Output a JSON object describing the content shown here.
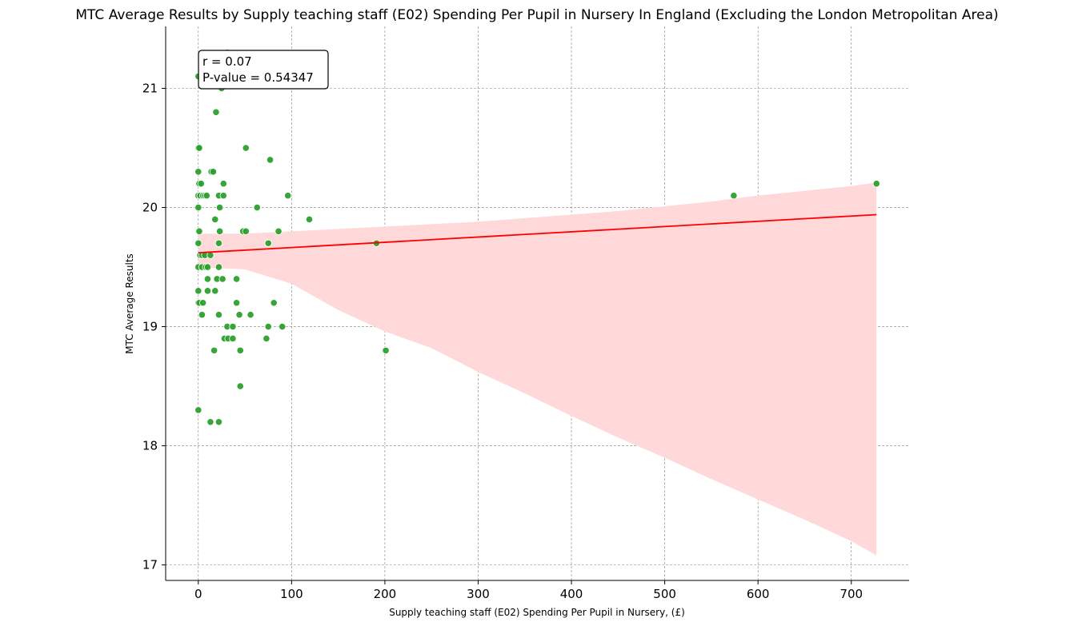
{
  "chart_data": {
    "type": "scatter",
    "title": "MTC Average Results by Supply teaching staff (E02) Spending Per Pupil in Nursery In England (Excluding the London Metropolitan Area)",
    "xlabel": "Supply teaching staff (E02) Spending Per Pupil in Nursery, (£)",
    "ylabel": "MTC Average Results",
    "xlim": [
      -35,
      762
    ],
    "ylim": [
      16.87,
      21.52
    ],
    "xticks": [
      0,
      100,
      200,
      300,
      400,
      500,
      600,
      700
    ],
    "yticks": [
      17,
      18,
      19,
      20,
      21
    ],
    "grid": true,
    "annotation": {
      "r_text": "r = 0.07",
      "p_text": "P-value = 0.54347",
      "placement": "top-left"
    },
    "colors": {
      "points": "#2ca02c",
      "points_edge": "#ffffff",
      "regression": "#ff0000",
      "ci_band": "#ffd8d9",
      "grid": "#808080"
    },
    "regression": {
      "x": [
        0,
        727
      ],
      "y": [
        19.62,
        19.94
      ]
    },
    "confidence_band": {
      "x": [
        0,
        50,
        100,
        150,
        200,
        250,
        300,
        350,
        400,
        450,
        500,
        550,
        600,
        650,
        700,
        727
      ],
      "upper": [
        19.78,
        19.78,
        19.8,
        19.82,
        19.84,
        19.86,
        19.88,
        19.91,
        19.94,
        19.97,
        20.01,
        20.05,
        20.1,
        20.14,
        20.18,
        20.21
      ],
      "lower": [
        19.5,
        19.48,
        19.36,
        19.14,
        18.96,
        18.82,
        18.62,
        18.44,
        18.25,
        18.07,
        17.9,
        17.72,
        17.55,
        17.38,
        17.2,
        17.08
      ]
    },
    "points": [
      {
        "x": 0,
        "y": 21.1
      },
      {
        "x": 0,
        "y": 20.5
      },
      {
        "x": 1,
        "y": 20.5
      },
      {
        "x": 0,
        "y": 20.3
      },
      {
        "x": 1,
        "y": 20.2
      },
      {
        "x": 3,
        "y": 20.2
      },
      {
        "x": 0,
        "y": 20.1
      },
      {
        "x": 2,
        "y": 20.1
      },
      {
        "x": 5,
        "y": 20.1
      },
      {
        "x": 7,
        "y": 20.1
      },
      {
        "x": 9,
        "y": 20.1
      },
      {
        "x": 0,
        "y": 20.0
      },
      {
        "x": 1,
        "y": 19.8
      },
      {
        "x": 0,
        "y": 19.7
      },
      {
        "x": 2,
        "y": 19.6
      },
      {
        "x": 4,
        "y": 19.6
      },
      {
        "x": 7,
        "y": 19.6
      },
      {
        "x": 13,
        "y": 19.6
      },
      {
        "x": 0,
        "y": 19.5
      },
      {
        "x": 4,
        "y": 19.5
      },
      {
        "x": 8,
        "y": 19.5
      },
      {
        "x": 10,
        "y": 19.5
      },
      {
        "x": 0,
        "y": 19.3
      },
      {
        "x": 0,
        "y": 19.2
      },
      {
        "x": 1,
        "y": 19.2
      },
      {
        "x": 5,
        "y": 19.2
      },
      {
        "x": 4,
        "y": 19.1
      },
      {
        "x": 10,
        "y": 19.4
      },
      {
        "x": 10,
        "y": 19.3
      },
      {
        "x": 14,
        "y": 20.3
      },
      {
        "x": 16,
        "y": 20.3
      },
      {
        "x": 18,
        "y": 19.9
      },
      {
        "x": 19,
        "y": 20.8
      },
      {
        "x": 20,
        "y": 19.4
      },
      {
        "x": 18,
        "y": 19.3
      },
      {
        "x": 22,
        "y": 20.1
      },
      {
        "x": 23,
        "y": 20.0
      },
      {
        "x": 23,
        "y": 19.8
      },
      {
        "x": 22,
        "y": 19.7
      },
      {
        "x": 22,
        "y": 19.5
      },
      {
        "x": 22,
        "y": 19.1
      },
      {
        "x": 17,
        "y": 18.8
      },
      {
        "x": 13,
        "y": 18.2
      },
      {
        "x": 22,
        "y": 18.2
      },
      {
        "x": 0,
        "y": 18.3
      },
      {
        "x": 25,
        "y": 21.0
      },
      {
        "x": 27,
        "y": 20.2
      },
      {
        "x": 27,
        "y": 20.1
      },
      {
        "x": 26,
        "y": 19.4
      },
      {
        "x": 28,
        "y": 18.9
      },
      {
        "x": 31,
        "y": 19.0
      },
      {
        "x": 32,
        "y": 18.9
      },
      {
        "x": 37,
        "y": 19.0
      },
      {
        "x": 37,
        "y": 18.9
      },
      {
        "x": 31,
        "y": 21.3
      },
      {
        "x": 41,
        "y": 19.4
      },
      {
        "x": 41,
        "y": 19.2
      },
      {
        "x": 44,
        "y": 19.1
      },
      {
        "x": 45,
        "y": 18.8
      },
      {
        "x": 45,
        "y": 18.5
      },
      {
        "x": 48,
        "y": 19.8
      },
      {
        "x": 51,
        "y": 19.8
      },
      {
        "x": 51,
        "y": 20.5
      },
      {
        "x": 56,
        "y": 19.1
      },
      {
        "x": 63,
        "y": 20.0
      },
      {
        "x": 73,
        "y": 18.9
      },
      {
        "x": 75,
        "y": 19.7
      },
      {
        "x": 75,
        "y": 19.0
      },
      {
        "x": 77,
        "y": 20.4
      },
      {
        "x": 81,
        "y": 19.2
      },
      {
        "x": 86,
        "y": 19.8
      },
      {
        "x": 90,
        "y": 19.0
      },
      {
        "x": 96,
        "y": 20.1
      },
      {
        "x": 119,
        "y": 19.9
      },
      {
        "x": 191,
        "y": 19.7
      },
      {
        "x": 201,
        "y": 18.8
      },
      {
        "x": 574,
        "y": 20.1
      },
      {
        "x": 727,
        "y": 20.2
      }
    ]
  }
}
